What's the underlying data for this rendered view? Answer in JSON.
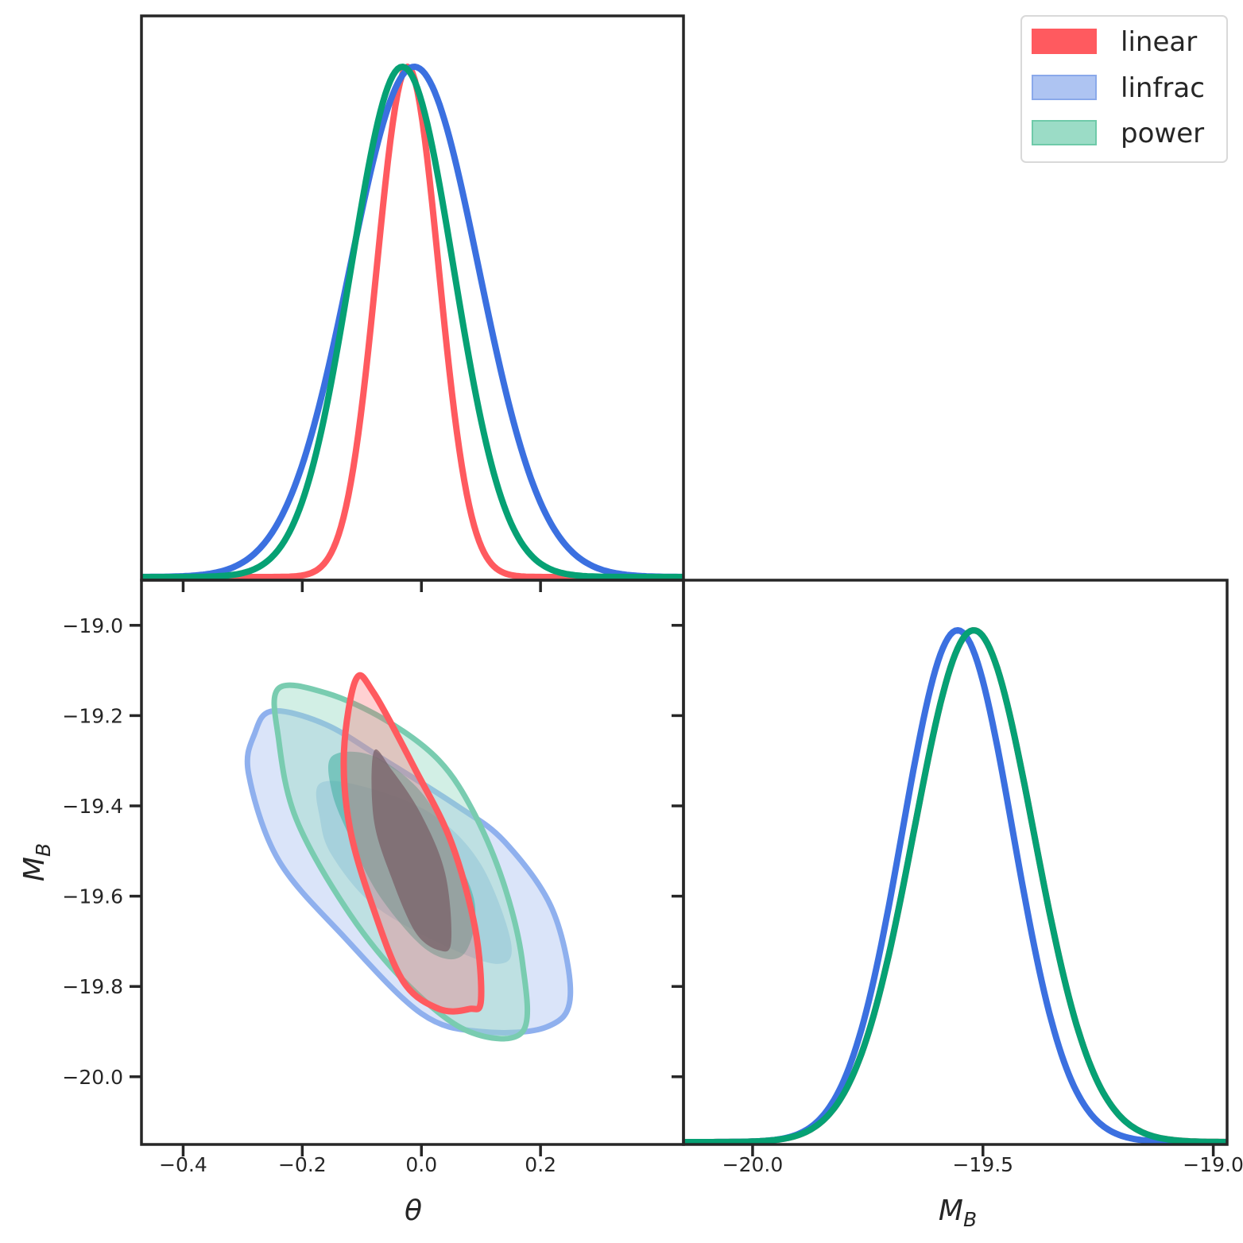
{
  "colors": {
    "linear": "#ff5a5f",
    "linfrac": "#3b70e0",
    "power": "#06a174",
    "linfrac_fill": "#aec4f2",
    "power_fill": "#9bdcc6",
    "frame": "#262626"
  },
  "chart_data": {
    "type": "triangle-corner-plot",
    "series": [
      {
        "key": "linear",
        "name": "linear"
      },
      {
        "key": "linfrac",
        "name": "linfrac"
      },
      {
        "key": "power",
        "name": "power"
      }
    ],
    "legend_position": "top-right",
    "axes": {
      "theta": {
        "symbol": "θ",
        "range": [
          -0.47,
          0.44
        ],
        "ticks": [
          -0.4,
          -0.2,
          0.0,
          0.2
        ],
        "tick_labels": [
          "−0.4",
          "−0.2",
          "0.0",
          "0.2"
        ]
      },
      "MB": {
        "symbol": "M",
        "subscript": "B",
        "range": [
          -20.15,
          -18.9
        ],
        "ticks": [
          -20.0,
          -19.8,
          -19.6,
          -19.4,
          -19.2,
          -19.0
        ],
        "tick_labels": [
          "−20.0",
          "−19.8",
          "−19.6",
          "−19.4",
          "−19.2",
          "−19.0"
        ],
        "x_range": [
          -20.15,
          -18.97
        ],
        "x_ticks": [
          -20.0,
          -19.5,
          -19.0
        ],
        "x_tick_labels": [
          "−20.0",
          "−19.5",
          "−19.0"
        ]
      }
    },
    "marginals_theta": [
      {
        "key": "linear",
        "mean": -0.023,
        "sigma": 0.052
      },
      {
        "key": "linfrac",
        "mean": -0.012,
        "sigma": 0.108
      },
      {
        "key": "power",
        "mean": -0.032,
        "sigma": 0.086
      }
    ],
    "marginals_MB": [
      {
        "key": "linear",
        "mean": -19.52,
        "sigma": 0.13
      },
      {
        "key": "linfrac",
        "mean": -19.555,
        "sigma": 0.12
      },
      {
        "key": "power",
        "mean": -19.52,
        "sigma": 0.13
      }
    ],
    "contours_2d": [
      {
        "key": "linfrac",
        "level": "95%",
        "points": [
          [
            -0.25,
            -19.19
          ],
          [
            -0.16,
            -19.22
          ],
          [
            -0.06,
            -19.3
          ],
          [
            0.06,
            -19.4
          ],
          [
            0.14,
            -19.48
          ],
          [
            0.22,
            -19.63
          ],
          [
            0.25,
            -19.82
          ],
          [
            0.21,
            -19.89
          ],
          [
            0.1,
            -19.9
          ],
          [
            0.0,
            -19.86
          ],
          [
            -0.13,
            -19.69
          ],
          [
            -0.24,
            -19.52
          ],
          [
            -0.29,
            -19.33
          ],
          [
            -0.28,
            -19.24
          ]
        ]
      },
      {
        "key": "linfrac",
        "level": "68%",
        "points": [
          [
            -0.17,
            -19.35
          ],
          [
            -0.09,
            -19.36
          ],
          [
            0.02,
            -19.42
          ],
          [
            0.1,
            -19.53
          ],
          [
            0.15,
            -19.7
          ],
          [
            0.13,
            -19.75
          ],
          [
            0.04,
            -19.71
          ],
          [
            -0.08,
            -19.62
          ],
          [
            -0.15,
            -19.51
          ],
          [
            -0.17,
            -19.43
          ]
        ]
      },
      {
        "key": "power",
        "level": "95%",
        "points": [
          [
            -0.24,
            -19.14
          ],
          [
            -0.16,
            -19.15
          ],
          [
            -0.06,
            -19.21
          ],
          [
            0.03,
            -19.3
          ],
          [
            0.09,
            -19.42
          ],
          [
            0.14,
            -19.58
          ],
          [
            0.17,
            -19.75
          ],
          [
            0.17,
            -19.9
          ],
          [
            0.08,
            -19.9
          ],
          [
            -0.02,
            -19.8
          ],
          [
            -0.12,
            -19.64
          ],
          [
            -0.21,
            -19.43
          ],
          [
            -0.24,
            -19.25
          ]
        ]
      },
      {
        "key": "power",
        "level": "68%",
        "points": [
          [
            -0.15,
            -19.29
          ],
          [
            -0.08,
            -19.29
          ],
          [
            0.0,
            -19.37
          ],
          [
            0.05,
            -19.49
          ],
          [
            0.09,
            -19.62
          ],
          [
            0.07,
            -19.73
          ],
          [
            0.01,
            -19.72
          ],
          [
            -0.07,
            -19.6
          ],
          [
            -0.12,
            -19.47
          ],
          [
            -0.15,
            -19.37
          ]
        ]
      },
      {
        "key": "linear",
        "level": "95%",
        "points": [
          [
            -0.11,
            -19.12
          ],
          [
            -0.08,
            -19.15
          ],
          [
            -0.01,
            -19.32
          ],
          [
            0.05,
            -19.48
          ],
          [
            0.09,
            -19.67
          ],
          [
            0.1,
            -19.83
          ],
          [
            0.08,
            -19.85
          ],
          [
            0.03,
            -19.85
          ],
          [
            -0.03,
            -19.79
          ],
          [
            -0.08,
            -19.63
          ],
          [
            -0.12,
            -19.45
          ],
          [
            -0.13,
            -19.28
          ]
        ]
      },
      {
        "key": "linear",
        "level": "68%",
        "points": [
          [
            -0.08,
            -19.28
          ],
          [
            -0.05,
            -19.32
          ],
          [
            0.0,
            -19.42
          ],
          [
            0.04,
            -19.55
          ],
          [
            0.05,
            -19.7
          ],
          [
            0.03,
            -19.72
          ],
          [
            -0.01,
            -19.68
          ],
          [
            -0.05,
            -19.56
          ],
          [
            -0.08,
            -19.43
          ]
        ]
      }
    ]
  }
}
